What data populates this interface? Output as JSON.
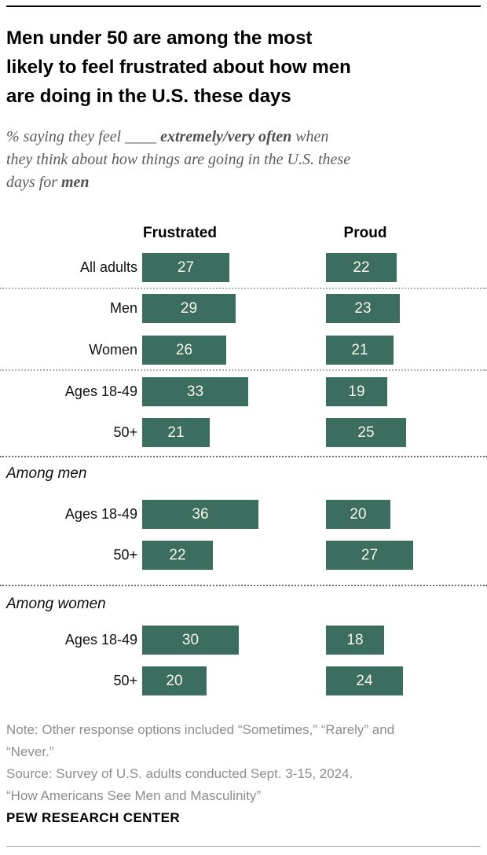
{
  "header": {
    "title_lines": [
      "Men under 50 are among the most",
      "likely to feel frustrated about how men",
      "are doing in the U.S. these days"
    ],
    "subtitle_parts": [
      {
        "text": "% saying they feel ____ "
      },
      {
        "text": "extremely/very often",
        "bold": true
      },
      {
        "text": " when"
      },
      {
        "break": true
      },
      {
        "text": "they think about how things are going in the U.S. these"
      },
      {
        "break": true
      },
      {
        "text": "days for "
      },
      {
        "text": "men",
        "bold": true
      }
    ]
  },
  "chart_data": {
    "type": "bar",
    "orientation": "horizontal",
    "unit": "%",
    "columns": [
      "Frustrated",
      "Proud"
    ],
    "bar_color": "#3c6e5f",
    "value_label_color": "#f7f5ec",
    "xlim": [
      0,
      40
    ],
    "groups": [
      {
        "section": null,
        "rows": [
          {
            "label": "All adults",
            "Frustrated": 27,
            "Proud": 22
          }
        ]
      },
      {
        "section": null,
        "rows": [
          {
            "label": "Men",
            "Frustrated": 29,
            "Proud": 23
          },
          {
            "label": "Women",
            "Frustrated": 26,
            "Proud": 21
          }
        ]
      },
      {
        "section": null,
        "rows": [
          {
            "label": "Ages 18-49",
            "Frustrated": 33,
            "Proud": 19
          },
          {
            "label": "50+",
            "Frustrated": 21,
            "Proud": 25
          }
        ]
      },
      {
        "section": "Among men",
        "rows": [
          {
            "label": "Ages 18-49",
            "Frustrated": 36,
            "Proud": 20
          },
          {
            "label": "50+",
            "Frustrated": 22,
            "Proud": 27
          }
        ]
      },
      {
        "section": "Among women",
        "rows": [
          {
            "label": "Ages 18-49",
            "Frustrated": 30,
            "Proud": 18
          },
          {
            "label": "50+",
            "Frustrated": 20,
            "Proud": 24
          }
        ]
      }
    ]
  },
  "footer": {
    "note_lines": [
      "Note: Other response options included “Sometimes,” “Rarely” and",
      "“Never.”",
      "Source: Survey of U.S. adults conducted Sept. 3-15, 2024.",
      "“How Americans See Men and Masculinity”"
    ],
    "brand": "PEW RESEARCH CENTER"
  }
}
